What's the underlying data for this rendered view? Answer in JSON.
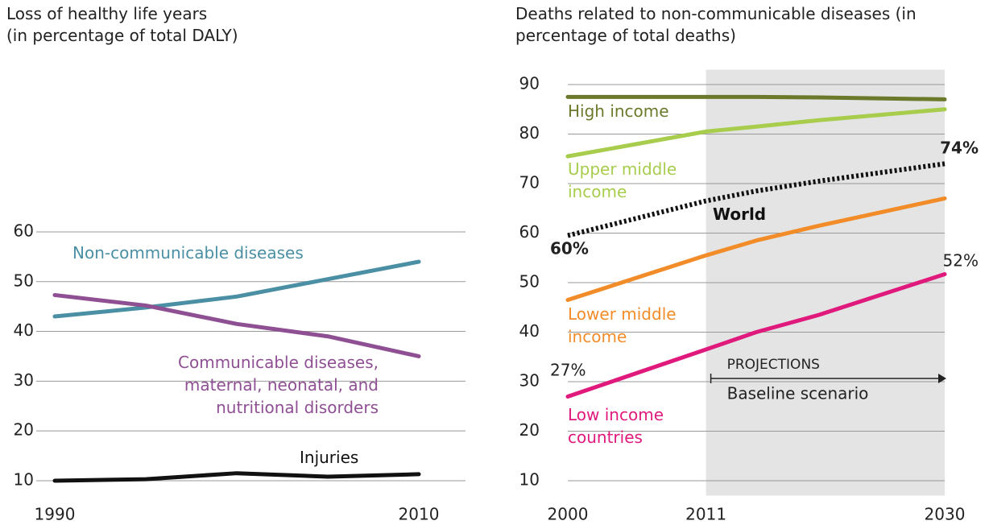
{
  "chart_data": [
    {
      "type": "line",
      "title": "Loss of healthy life years",
      "subtitle": "(in percentage of total DALY)",
      "x": [
        1990,
        1995,
        2000,
        2005,
        2010
      ],
      "xlim": [
        1990,
        2010
      ],
      "xticks": [
        1990,
        2010
      ],
      "ylim": [
        7,
        62
      ],
      "yticks": [
        10,
        20,
        30,
        40,
        50,
        60
      ],
      "grid": true,
      "series": [
        {
          "name": "Non-communicable diseases",
          "color": "#4a8fa3",
          "values": [
            43,
            44.8,
            47,
            50.5,
            54
          ]
        },
        {
          "name": "Communicable diseases, maternal, neonatal, and nutritional disorders",
          "color": "#8e4f93",
          "values": [
            47.3,
            45.2,
            41.5,
            39,
            35
          ]
        },
        {
          "name": "Injuries",
          "color": "#111111",
          "values": [
            10,
            10.3,
            11.5,
            10.8,
            11.3
          ]
        }
      ]
    },
    {
      "type": "line",
      "title": "Deaths related to non-communicable diseases (in percentage of total deaths)",
      "x": [
        2000,
        2011,
        2015,
        2020,
        2030
      ],
      "xlim": [
        2000,
        2030
      ],
      "xticks": [
        2000,
        2011,
        2030
      ],
      "ylim": [
        7,
        93
      ],
      "yticks": [
        10,
        20,
        30,
        40,
        50,
        60,
        70,
        80,
        90
      ],
      "grid": true,
      "shaded_xrange": [
        2011,
        2030
      ],
      "annotations": [
        "PROJECTIONS",
        "Baseline scenario"
      ],
      "series": [
        {
          "name": "High income",
          "color": "#6b7a2a",
          "values": [
            87.5,
            87.5,
            87.5,
            87.4,
            87
          ]
        },
        {
          "name": "Upper middle income",
          "color": "#a8cc4c",
          "values": [
            75.5,
            80.5,
            81.5,
            82.8,
            85
          ]
        },
        {
          "name": "World",
          "color": "#111111",
          "style": "dotted",
          "values": [
            59.5,
            66.5,
            68.5,
            70.5,
            74
          ],
          "value_labels": [
            "60%",
            null,
            null,
            null,
            "74%"
          ]
        },
        {
          "name": "Lower middle income",
          "color": "#f28c28",
          "values": [
            46.5,
            55.5,
            58.5,
            61.5,
            67
          ]
        },
        {
          "name": "Low income countries",
          "color": "#e0197c",
          "values": [
            27,
            36.5,
            40,
            43.5,
            51.7
          ],
          "value_labels": [
            "27%",
            null,
            null,
            null,
            "52%"
          ]
        }
      ]
    }
  ]
}
